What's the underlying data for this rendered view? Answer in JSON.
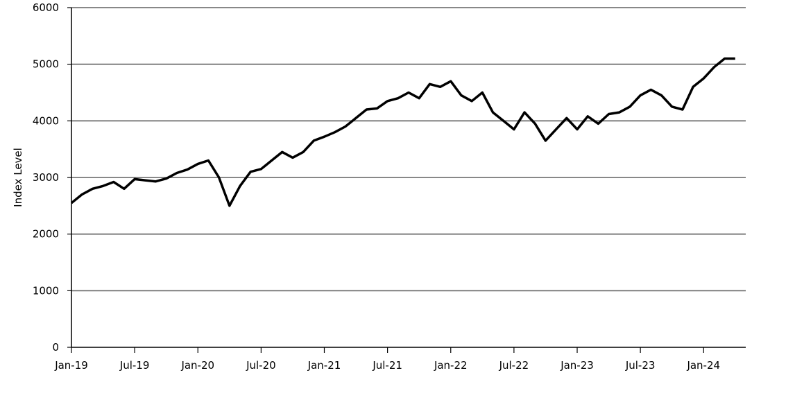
{
  "chart_data": {
    "type": "line",
    "y_label": "Index Level",
    "x": [
      "2019-01",
      "2019-02",
      "2019-03",
      "2019-04",
      "2019-05",
      "2019-06",
      "2019-07",
      "2019-08",
      "2019-09",
      "2019-10",
      "2019-11",
      "2019-12",
      "2020-01",
      "2020-02",
      "2020-03",
      "2020-04",
      "2020-05",
      "2020-06",
      "2020-07",
      "2020-08",
      "2020-09",
      "2020-10",
      "2020-11",
      "2020-12",
      "2021-01",
      "2021-02",
      "2021-03",
      "2021-04",
      "2021-05",
      "2021-06",
      "2021-07",
      "2021-08",
      "2021-09",
      "2021-10",
      "2021-11",
      "2021-12",
      "2022-01",
      "2022-02",
      "2022-03",
      "2022-04",
      "2022-05",
      "2022-06",
      "2022-07",
      "2022-08",
      "2022-09",
      "2022-10",
      "2022-11",
      "2022-12",
      "2023-01",
      "2023-02",
      "2023-03",
      "2023-04",
      "2023-05",
      "2023-06",
      "2023-07",
      "2023-08",
      "2023-09",
      "2023-10",
      "2023-11",
      "2023-12",
      "2024-01",
      "2024-02",
      "2024-03",
      "2024-04"
    ],
    "series": [
      {
        "color": "#000000",
        "values": [
          2550,
          2700,
          2800,
          2850,
          2920,
          2800,
          2970,
          2950,
          2930,
          2980,
          3080,
          3140,
          3240,
          3300,
          3000,
          2500,
          2850,
          3100,
          3150,
          3300,
          3450,
          3350,
          3450,
          3650,
          3720,
          3800,
          3900,
          4050,
          4200,
          4220,
          4350,
          4400,
          4500,
          4400,
          4650,
          4600,
          4700,
          4450,
          4350,
          4500,
          4150,
          4000,
          3850,
          4150,
          3950,
          3650,
          3850,
          4050,
          3850,
          4080,
          3950,
          4120,
          4150,
          4250,
          4450,
          4550,
          4450,
          4250,
          4200,
          4600,
          4750,
          4950,
          5100,
          5100
        ]
      }
    ],
    "xlim": [
      "2019-01",
      "2024-05"
    ],
    "xticks": [
      {
        "value": "2019-01",
        "label": "Jan-19"
      },
      {
        "value": "2019-07",
        "label": "Jul-19"
      },
      {
        "value": "2020-01",
        "label": "Jan-20"
      },
      {
        "value": "2020-07",
        "label": "Jul-20"
      },
      {
        "value": "2021-01",
        "label": "Jan-21"
      },
      {
        "value": "2021-07",
        "label": "Jul-21"
      },
      {
        "value": "2022-01",
        "label": "Jan-22"
      },
      {
        "value": "2022-07",
        "label": "Jul-22"
      },
      {
        "value": "2023-01",
        "label": "Jan-23"
      },
      {
        "value": "2023-07",
        "label": "Jul-23"
      },
      {
        "value": "2024-01",
        "label": "Jan-24"
      }
    ],
    "ylim": [
      0,
      6000
    ],
    "yticks": [
      0,
      1000,
      2000,
      3000,
      4000,
      5000,
      6000
    ],
    "grid": true
  }
}
